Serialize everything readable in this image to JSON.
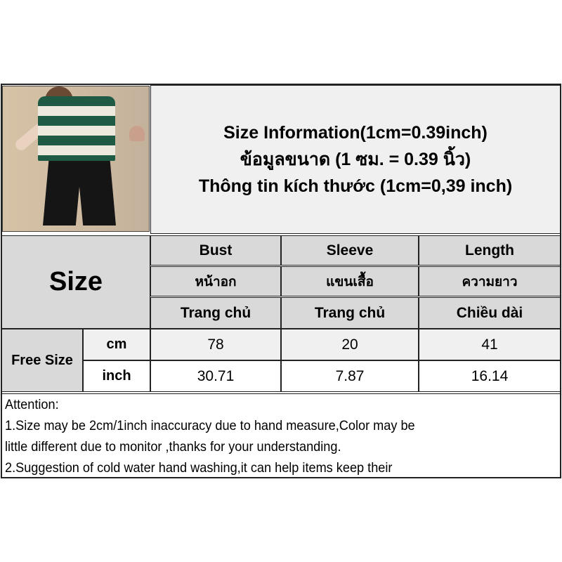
{
  "title": {
    "line_en": "Size Information(1cm=0.39inch)",
    "line_th": "ข้อมูลขนาด (1 ซม. = 0.39 นิ้ว)",
    "line_vi": "Thông tin kích thước (1cm=0,39 inch)"
  },
  "table": {
    "size_label": "Size",
    "columns": [
      {
        "en": "Bust",
        "th": "หน้าอก",
        "vi": "Trang chủ"
      },
      {
        "en": "Sleeve",
        "th": "แขนเสื้อ",
        "vi": "Trang chủ"
      },
      {
        "en": "Length",
        "th": "ความยาว",
        "vi": "Chiều dài"
      }
    ],
    "size_name": "Free Size",
    "rows": [
      {
        "unit": "cm",
        "values": [
          "78",
          "20",
          "41"
        ]
      },
      {
        "unit": "inch",
        "values": [
          "30.71",
          "7.87",
          "16.14"
        ]
      }
    ]
  },
  "attention": {
    "lines": [
      "Attention:",
      "1.Size may be 2cm/1inch inaccuracy due to hand measure,Color may be",
      "little different due to monitor ,thanks for your understanding.",
      "2.Suggestion of cold water hand washing,it can help items keep their"
    ]
  },
  "colors": {
    "header_gray": "#d9d9d9",
    "title_bg": "#f0f0f0",
    "shirt_stripe": "#1f5a45"
  }
}
